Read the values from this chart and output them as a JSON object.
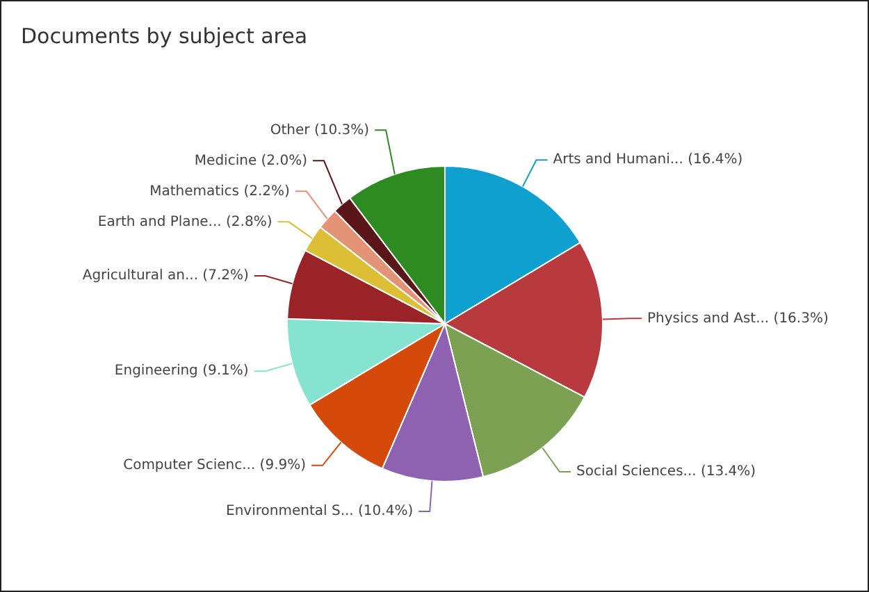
{
  "chart_data": {
    "type": "pie",
    "title": "Documents by subject area",
    "categories": [
      "Arts and Humani...",
      "Physics and Ast...",
      "Social Sciences...",
      "Environmental S...",
      "Computer Scienc...",
      "Engineering",
      "Agricultural an...",
      "Earth and Plane...",
      "Mathematics",
      "Medicine",
      "Other"
    ],
    "values": [
      16.4,
      16.3,
      13.4,
      10.4,
      9.9,
      9.1,
      7.2,
      2.8,
      2.2,
      2.0,
      10.3
    ],
    "value_labels": [
      "(16.4%)",
      "(16.3%)",
      "(13.4%)",
      "(10.4%)",
      "(9.9%)",
      "(9.1%)",
      "(7.2%)",
      "(2.8%)",
      "(2.2%)",
      "(2.0%)",
      "(10.3%)"
    ],
    "colors": [
      "#0ea0cf",
      "#b83a3f",
      "#7da152",
      "#8e62b0",
      "#d54a0a",
      "#86e3d0",
      "#9a2328",
      "#dcbf34",
      "#e59376",
      "#5a1519",
      "#2e8b22"
    ],
    "legend": false
  }
}
